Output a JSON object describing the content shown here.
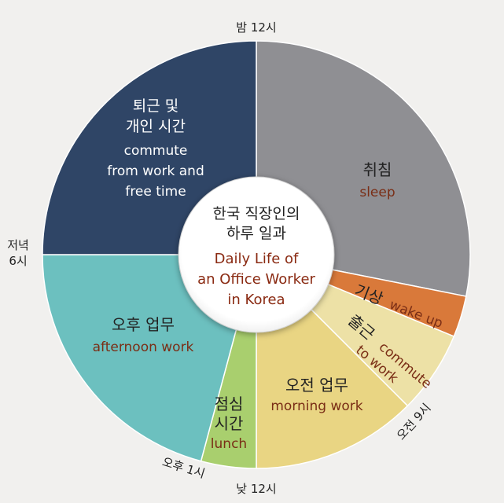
{
  "chart_data": {
    "type": "pie",
    "center_title": {
      "ko_line1": "한국 직장인의",
      "ko_line2": "하루 일과",
      "en_line1": "Daily Life of",
      "en_line2": "an Office Worker",
      "en_line3": "in Korea"
    },
    "slices": [
      {
        "ko": "취침",
        "en": "sleep",
        "start_hour": 0,
        "end_hour": 6.75,
        "color": "#8f8f93"
      },
      {
        "ko": "기상",
        "en": "wake up",
        "start_hour": 6.75,
        "end_hour": 7.5,
        "color": "#d9793a"
      },
      {
        "ko": "출근",
        "en_line1": "commute",
        "en_line2": "to work",
        "start_hour": 7.5,
        "end_hour": 9,
        "color": "#ede1a6"
      },
      {
        "ko": "오전 업무",
        "en": "morning work",
        "start_hour": 9,
        "end_hour": 12,
        "color": "#e9d583"
      },
      {
        "ko_line1": "점심",
        "ko_line2": "시간",
        "en": "lunch",
        "start_hour": 12,
        "end_hour": 13,
        "color": "#a9cf6e"
      },
      {
        "ko": "오후 업무",
        "en": "afternoon work",
        "start_hour": 13,
        "end_hour": 18,
        "color": "#6cc0bf"
      },
      {
        "ko_line1": "퇴근 및",
        "ko_line2": "개인 시간",
        "en_line1": "commute",
        "en_line2": "from work and",
        "en_line3": "free time",
        "start_hour": 18,
        "end_hour": 24,
        "color": "#2f4566"
      }
    ],
    "ticks": [
      {
        "label": "밤 12시"
      },
      {
        "label": "오전 9시"
      },
      {
        "label": "낮 12시"
      },
      {
        "label": "오후 1시"
      },
      {
        "label_line1": "저녁",
        "label_line2": "6시"
      }
    ]
  }
}
